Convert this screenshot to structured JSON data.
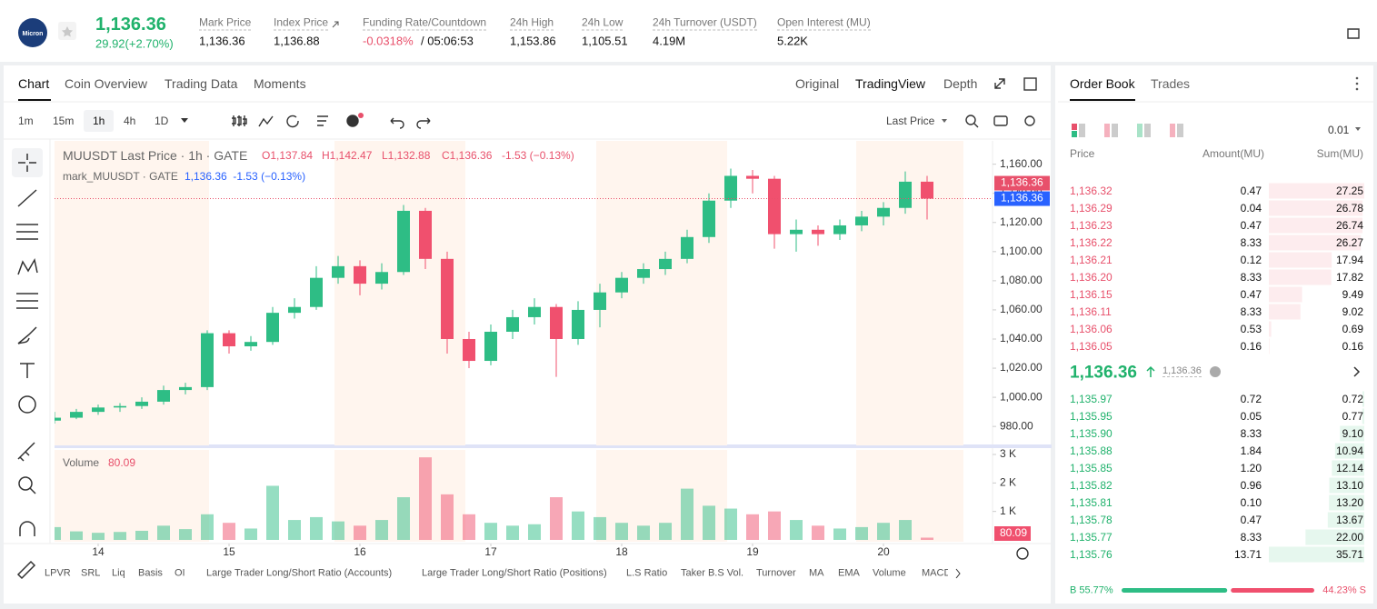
{
  "header": {
    "logo": "Micron",
    "price": "1,136.36",
    "change": "29.92(+2.70%)",
    "stats": [
      {
        "label": "Mark Price",
        "value": "1,136.36"
      },
      {
        "label": "Index Price",
        "value": "1,136.88"
      },
      {
        "label": "Funding Rate/Countdown",
        "value": "-0.0318%",
        "countdown": "/ 05:06:53"
      },
      {
        "label": "24h High",
        "value": "1,153.86"
      },
      {
        "label": "24h Low",
        "value": "1,105.51"
      },
      {
        "label": "24h Turnover (USDT)",
        "value": "4.19M"
      },
      {
        "label": "Open Interest (MU)",
        "value": "5.22K"
      }
    ]
  },
  "chart_tabs": [
    "Chart",
    "Coin Overview",
    "Trading Data",
    "Moments"
  ],
  "view_tabs": [
    "Original",
    "TradingView",
    "Depth"
  ],
  "intervals": [
    "1m",
    "15m",
    "1h",
    "4h",
    "1D"
  ],
  "price_source": "Last Price",
  "chart_data": {
    "type": "candlestick",
    "title": "MUUSDT Last Price · 1h · GATE",
    "ohlc": [
      "O1,137.84",
      "H1,142.47",
      "L1,132.88",
      "C1,136.36",
      "-1.53 (−0.13%)"
    ],
    "mark_title": "mark_MUUSDT · GATE",
    "mark_values": "1,136.36  -1.53 (−0.13%)",
    "up_color": "#2ebd85",
    "down_color": "#f0506e",
    "candles": [
      [
        984,
        990,
        982,
        986
      ],
      [
        986,
        992,
        985,
        990
      ],
      [
        990,
        995,
        988,
        993
      ],
      [
        993,
        996,
        990,
        994
      ],
      [
        994,
        1000,
        992,
        997
      ],
      [
        997,
        1008,
        995,
        1005
      ],
      [
        1005,
        1010,
        1002,
        1007
      ],
      [
        1007,
        1046,
        1005,
        1044
      ],
      [
        1044,
        1046,
        1030,
        1035
      ],
      [
        1035,
        1042,
        1032,
        1038
      ],
      [
        1038,
        1062,
        1036,
        1058
      ],
      [
        1058,
        1068,
        1054,
        1062
      ],
      [
        1062,
        1090,
        1060,
        1082
      ],
      [
        1082,
        1097,
        1078,
        1090
      ],
      [
        1090,
        1094,
        1070,
        1078
      ],
      [
        1078,
        1092,
        1074,
        1086
      ],
      [
        1086,
        1132,
        1084,
        1128
      ],
      [
        1128,
        1130,
        1088,
        1095
      ],
      [
        1095,
        1100,
        1030,
        1040
      ],
      [
        1040,
        1045,
        1020,
        1025
      ],
      [
        1025,
        1050,
        1022,
        1045
      ],
      [
        1045,
        1060,
        1040,
        1055
      ],
      [
        1055,
        1068,
        1050,
        1062
      ],
      [
        1062,
        1064,
        1014,
        1040
      ],
      [
        1040,
        1066,
        1036,
        1060
      ],
      [
        1060,
        1078,
        1048,
        1072
      ],
      [
        1072,
        1086,
        1068,
        1082
      ],
      [
        1082,
        1092,
        1078,
        1088
      ],
      [
        1088,
        1100,
        1084,
        1095
      ],
      [
        1095,
        1115,
        1092,
        1110
      ],
      [
        1110,
        1140,
        1106,
        1135
      ],
      [
        1135,
        1157,
        1130,
        1152
      ],
      [
        1152,
        1156,
        1140,
        1150
      ],
      [
        1150,
        1152,
        1102,
        1112
      ],
      [
        1112,
        1122,
        1100,
        1115
      ],
      [
        1115,
        1118,
        1104,
        1112
      ],
      [
        1112,
        1122,
        1108,
        1118
      ],
      [
        1118,
        1128,
        1114,
        1124
      ],
      [
        1124,
        1134,
        1118,
        1130
      ],
      [
        1130,
        1155,
        1126,
        1148
      ],
      [
        1148,
        1152,
        1122,
        1136.36
      ]
    ],
    "xlim": [
      0,
      43
    ],
    "xticks": [
      {
        "value": 2,
        "label": "14"
      },
      {
        "value": 8,
        "label": "15"
      },
      {
        "value": 14,
        "label": "16"
      },
      {
        "value": 20,
        "label": "17"
      },
      {
        "value": 26,
        "label": "18"
      },
      {
        "value": 32,
        "label": "19"
      },
      {
        "value": 38,
        "label": "20"
      }
    ],
    "ylim": [
      967,
      1176
    ],
    "yticks": [
      {
        "value": 980,
        "label": "980.00"
      },
      {
        "value": 1000,
        "label": "1,000.00"
      },
      {
        "value": 1020,
        "label": "1,020.00"
      },
      {
        "value": 1040,
        "label": "1,040.00"
      },
      {
        "value": 1060,
        "label": "1,060.00"
      },
      {
        "value": 1080,
        "label": "1,080.00"
      },
      {
        "value": 1100,
        "label": "1,100.00"
      },
      {
        "value": 1120,
        "label": "1,120.00"
      },
      {
        "value": 1140,
        "label": "1,140.00"
      },
      {
        "value": 1160,
        "label": "1,160.00"
      }
    ],
    "price_tags": [
      {
        "value": 1136.36,
        "label": "1,136.36",
        "color": "#e8506b"
      },
      {
        "value": 1136.36,
        "label": "1,136.36",
        "color": "#2962ff"
      }
    ],
    "volume_title": "Volume",
    "volumes": [
      450,
      300,
      250,
      280,
      320,
      500,
      380,
      900,
      600,
      400,
      1900,
      700,
      800,
      650,
      500,
      700,
      1500,
      2900,
      1600,
      900,
      600,
      500,
      550,
      1500,
      1000,
      800,
      600,
      500,
      600,
      1800,
      1200,
      1100,
      900,
      1000,
      700,
      500,
      400,
      450,
      600,
      700,
      80.09
    ],
    "volume_ylim": [
      0,
      3000
    ],
    "volume_yticks": [
      {
        "value": 1000,
        "label": "1 K"
      },
      {
        "value": 2000,
        "label": "2 K"
      },
      {
        "value": 3000,
        "label": "3 K"
      }
    ]
  },
  "indicators": [
    "LPVR",
    "SRL",
    "Liq",
    "Basis",
    "OI",
    "Large Trader Long/Short Ratio (Accounts)",
    "Large Trader Long/Short Ratio (Positions)",
    "L.S Ratio",
    "Taker B.S Vol.",
    "Turnover",
    "MA",
    "EMA",
    "Volume",
    "MACD"
  ],
  "order_book": {
    "tabs": [
      "Order Book",
      "Trades"
    ],
    "precision": "0.01",
    "columns": [
      "Price",
      "Amount(MU)",
      "Sum(MU)"
    ],
    "asks": [
      [
        "1,136.32",
        "0.47",
        "27.25"
      ],
      [
        "1,136.29",
        "0.04",
        "26.78"
      ],
      [
        "1,136.23",
        "0.47",
        "26.74"
      ],
      [
        "1,136.22",
        "8.33",
        "26.27"
      ],
      [
        "1,136.21",
        "0.12",
        "17.94"
      ],
      [
        "1,136.20",
        "8.33",
        "17.82"
      ],
      [
        "1,136.15",
        "0.47",
        "9.49"
      ],
      [
        "1,136.11",
        "8.33",
        "9.02"
      ],
      [
        "1,136.06",
        "0.53",
        "0.69"
      ],
      [
        "1,136.05",
        "0.16",
        "0.16"
      ]
    ],
    "mid_price": "1,136.36",
    "mark_price": "1,136.36",
    "bids": [
      [
        "1,135.97",
        "0.72",
        "0.72"
      ],
      [
        "1,135.95",
        "0.05",
        "0.77"
      ],
      [
        "1,135.90",
        "8.33",
        "9.10"
      ],
      [
        "1,135.88",
        "1.84",
        "10.94"
      ],
      [
        "1,135.85",
        "1.20",
        "12.14"
      ],
      [
        "1,135.82",
        "0.96",
        "13.10"
      ],
      [
        "1,135.81",
        "0.10",
        "13.20"
      ],
      [
        "1,135.78",
        "0.47",
        "13.67"
      ],
      [
        "1,135.77",
        "8.33",
        "22.00"
      ],
      [
        "1,135.76",
        "13.71",
        "35.71"
      ]
    ],
    "buy_ratio": 55.77,
    "sell_ratio": 44.23,
    "buy_label": "B 55.77%",
    "sell_label": "44.23% S"
  }
}
